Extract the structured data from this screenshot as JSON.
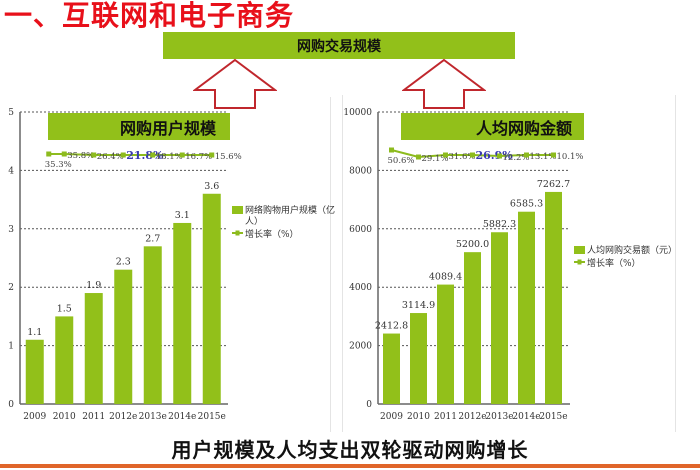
{
  "title": "一、互联网和电子商务",
  "top_banner": "网购交易规模",
  "footer": "用户规模及人均支出双轮驱动网购增长",
  "colors": {
    "bar": "#92c01a",
    "title": "#e8101a",
    "arrow": "#c0272d",
    "line": "#8dbb1e",
    "highlight_label": "#3a3ab0",
    "footer_line": "#e0652a"
  },
  "chart_data": [
    {
      "type": "bar",
      "title": "网购用户规模",
      "categories": [
        "2009",
        "2010",
        "2011",
        "2012e",
        "2013e",
        "2014e",
        "2015e"
      ],
      "series": [
        {
          "name": "网络购物用户规模（亿人）",
          "type": "bar",
          "values": [
            1.1,
            1.5,
            1.9,
            2.3,
            2.7,
            3.1,
            3.6
          ],
          "labels": [
            "1.1",
            "1.5",
            "1.9",
            "2.3",
            "2.7",
            "3.1",
            "3.6"
          ]
        },
        {
          "name": "增长率（%）",
          "type": "line",
          "values": [
            35.3,
            35.8,
            26.4,
            21.8,
            18.1,
            16.7,
            15.6
          ],
          "labels": [
            "35.3%",
            "35.8%",
            "26.4%",
            "21.8%",
            "18.1%",
            "16.7%",
            "15.6%"
          ]
        }
      ],
      "yticks": [
        "0",
        "1",
        "2",
        "3",
        "4",
        "5"
      ],
      "ylim": [
        0,
        5
      ],
      "grid": true,
      "legend_position": "right"
    },
    {
      "type": "bar",
      "title": "人均网购金额",
      "categories": [
        "2009",
        "2010",
        "2011",
        "2012e",
        "2013e",
        "2014e",
        "2015e"
      ],
      "series": [
        {
          "name": "人均网购交易额（元）",
          "type": "bar",
          "values": [
            2412.8,
            3114.9,
            4089.4,
            5200.0,
            5882.3,
            6585.3,
            7262.7
          ],
          "labels": [
            "2412.8",
            "3114.9",
            "4089.4",
            "5200.0",
            "5882.3",
            "6585.3",
            "7262.7"
          ]
        },
        {
          "name": "增长率（%）",
          "type": "line",
          "values": [
            50.6,
            29.1,
            31.6,
            26.9,
            12.2,
            13.1,
            10.1
          ],
          "labels": [
            "50.6%",
            "29.1%",
            "31.6%",
            "26.9%",
            "12.2%",
            "13.1%",
            "10.1%"
          ]
        }
      ],
      "yticks": [
        "0",
        "2000",
        "4000",
        "6000",
        "8000",
        "10000"
      ],
      "ylim": [
        0,
        10000
      ],
      "grid": true,
      "legend_position": "right"
    }
  ]
}
